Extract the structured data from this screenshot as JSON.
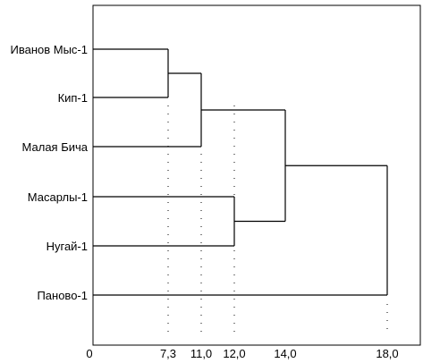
{
  "chart_data": {
    "type": "dendrogram",
    "leaves": [
      "Иванов Мыс-1",
      "Кип-1",
      "Малая Бича",
      "Масарлы-1",
      "Нугай-1",
      "Панoво-1"
    ],
    "merges": [
      {
        "left": "Иванов Мыс-1",
        "right": "Кип-1",
        "distance": 7.3
      },
      {
        "left": "Иванов Мыс-1 + Кип-1",
        "right": "Малая Бича",
        "distance": 11.0
      },
      {
        "left": "Масарлы-1",
        "right": "Нугай-1",
        "distance": 12.0
      },
      {
        "left": "Иванов Мыс-1 + Кип-1 + Малая Бича",
        "right": "Масарлы-1 + Нугай-1",
        "distance": 14.0
      },
      {
        "left": "Все прочие",
        "right": "Панoво-1",
        "distance": 18.0
      }
    ],
    "x_ticks": [
      {
        "value": 0,
        "label": "0"
      },
      {
        "value": 7.3,
        "label": "7,3"
      },
      {
        "value": 11.0,
        "label": "11,0"
      },
      {
        "value": 12.0,
        "label": "12,0"
      },
      {
        "value": 14.0,
        "label": "14,0"
      },
      {
        "value": 18.0,
        "label": "18,0"
      }
    ],
    "dotted_guides": [
      7.3,
      11.0,
      12.0,
      18.0
    ],
    "xlim": [
      0,
      18.0
    ]
  },
  "colors": {
    "line": "#000000",
    "background": "#ffffff"
  }
}
